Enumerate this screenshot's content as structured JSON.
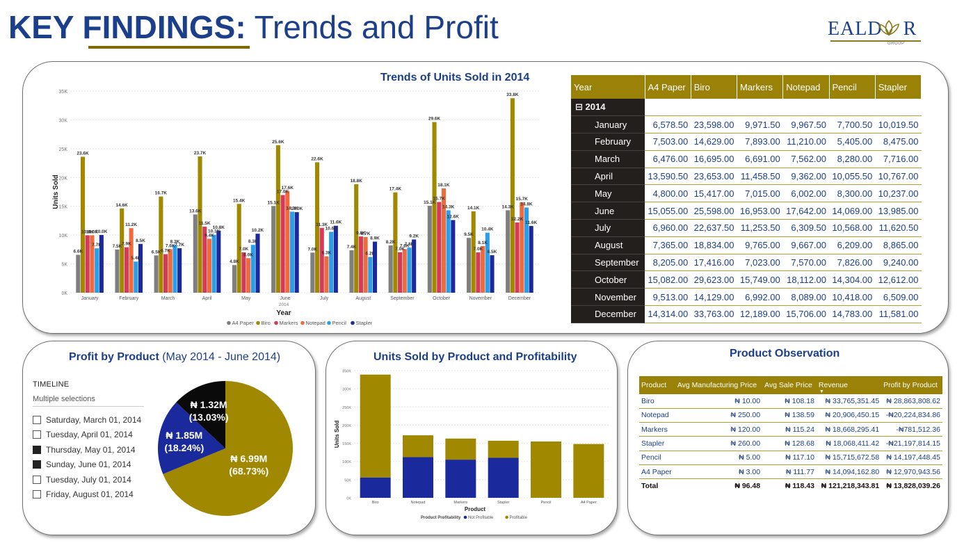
{
  "header": {
    "title_bold": "KEY FINDINGS",
    "title_colon": ":",
    "title_rest": " Trends and Profit",
    "logo_left": "EALD",
    "logo_right": "R",
    "logo_sub": "GROUP"
  },
  "trends": {
    "title": "Trends of Units Sold in 2014"
  },
  "pivot": {
    "headers": [
      "Year",
      "A4 Paper",
      "Biro",
      "Markers",
      "Notepad",
      "Pencil",
      "Stapler"
    ],
    "year_label": "⊟  2014",
    "rows": [
      {
        "month": "January",
        "values": [
          "6,578.50",
          "23,598.00",
          "9,971.50",
          "9,967.50",
          "7,700.50",
          "10,019.50"
        ]
      },
      {
        "month": "February",
        "values": [
          "7,503.00",
          "14,629.00",
          "7,893.00",
          "11,210.00",
          "5,405.00",
          "8,475.00"
        ]
      },
      {
        "month": "March",
        "values": [
          "6,476.00",
          "16,695.00",
          "6,691.00",
          "7,562.00",
          "8,280.00",
          "7,716.00"
        ]
      },
      {
        "month": "April",
        "values": [
          "13,590.50",
          "23,653.00",
          "11,458.50",
          "9,362.00",
          "10,055.50",
          "10,767.00"
        ]
      },
      {
        "month": "May",
        "values": [
          "4,800.00",
          "15,417.00",
          "7,015.00",
          "6,002.00",
          "8,300.00",
          "10,237.00"
        ]
      },
      {
        "month": "June",
        "values": [
          "15,055.00",
          "25,598.00",
          "16,953.00",
          "17,642.00",
          "14,069.00",
          "13,985.00"
        ]
      },
      {
        "month": "July",
        "values": [
          "6,960.00",
          "22,637.50",
          "11,253.50",
          "6,309.50",
          "10,568.00",
          "11,620.50"
        ]
      },
      {
        "month": "August",
        "values": [
          "7,365.00",
          "18,834.00",
          "9,765.00",
          "9,667.00",
          "6,209.00",
          "8,865.00"
        ]
      },
      {
        "month": "September",
        "values": [
          "8,205.00",
          "17,416.00",
          "7,023.00",
          "7,570.00",
          "7,826.00",
          "9,240.00"
        ]
      },
      {
        "month": "October",
        "values": [
          "15,082.00",
          "29,623.00",
          "15,749.00",
          "18,112.00",
          "14,304.00",
          "12,612.00"
        ]
      },
      {
        "month": "November",
        "values": [
          "9,513.00",
          "14,129.00",
          "6,992.00",
          "8,089.00",
          "10,418.00",
          "6,509.00"
        ]
      },
      {
        "month": "December",
        "values": [
          "14,314.00",
          "33,763.00",
          "12,189.00",
          "15,706.00",
          "14,783.00",
          "11,581.00"
        ]
      }
    ]
  },
  "profit": {
    "title_bold": "Profit by Product",
    "title_rest": " (May 2014 - June 2014)",
    "slicer_header": "TIMELINE",
    "slicer_mode": "Multiple selections",
    "slicer_options": [
      {
        "label": "Saturday, March 01, 2014",
        "checked": false
      },
      {
        "label": "Tuesday, April 01, 2014",
        "checked": false
      },
      {
        "label": "Thursday, May 01, 2014",
        "checked": true
      },
      {
        "label": "Sunday, June 01, 2014",
        "checked": true
      },
      {
        "label": "Tuesday, July 01, 2014",
        "checked": false
      },
      {
        "label": "Friday, August 01, 2014",
        "checked": false
      }
    ]
  },
  "units": {
    "title": "Units Sold by Product and Profitability"
  },
  "observation": {
    "title": "Product Observation",
    "headers": [
      "Product",
      "Avg Manufacturing Price",
      "Avg Sale Price",
      "Revenue",
      "Profit by Product"
    ],
    "rows": [
      [
        "Biro",
        "₦ 10.00",
        "₦ 108.18",
        "₦ 33,765,351.45",
        "₦ 28,863,808.62"
      ],
      [
        "Notepad",
        "₦ 250.00",
        "₦ 138.59",
        "₦ 20,906,450.15",
        "-₦20,224,834.86"
      ],
      [
        "Markers",
        "₦ 120.00",
        "₦ 115.24",
        "₦ 18,668,295.41",
        "-₦781,512.36"
      ],
      [
        "Stapler",
        "₦ 260.00",
        "₦ 128.68",
        "₦ 18,068,411.42",
        "-₦21,197,814.15"
      ],
      [
        "Pencil",
        "₦ 5.00",
        "₦ 117.10",
        "₦ 15,715,672.58",
        "₦ 14,197,448.45"
      ],
      [
        "A4 Paper",
        "₦ 3.00",
        "₦ 111.77",
        "₦ 14,094,162.80",
        "₦ 12,970,943.56"
      ]
    ],
    "total": [
      "Total",
      "₦ 96.48",
      "₦ 118.43",
      "₦ 121,218,343.81",
      "₦ 13,828,039.26"
    ]
  },
  "chart_data": [
    {
      "type": "bar",
      "title": "Trends of Units Sold in 2014",
      "xlabel": "Year",
      "x_sublabel": "2014",
      "ylabel": "Units Sold",
      "ylim": [
        0,
        35000
      ],
      "yticks": [
        "0K",
        "5K",
        "10K",
        "15K",
        "20K",
        "25K",
        "30K",
        "35K"
      ],
      "categories": [
        "January",
        "February",
        "March",
        "April",
        "May",
        "June",
        "July",
        "August",
        "September",
        "October",
        "November",
        "December"
      ],
      "legend": "bottom",
      "series": [
        {
          "name": "A4 Paper",
          "color": "#7f7f7f",
          "values": [
            6578.5,
            7503,
            6476,
            13590.5,
            4800,
            15055,
            6960,
            7365,
            8205,
            15082,
            9513,
            14314
          ],
          "labels": [
            "6.6K",
            "7.5K",
            "6.5K",
            "13.6K",
            "4.8K",
            "15.1K",
            "7.0K",
            "7.4K",
            "8.2K",
            "15.1K",
            "9.5K",
            "14.3K"
          ]
        },
        {
          "name": "Biro",
          "color": "#a08800",
          "values": [
            23598,
            14629,
            16695,
            23653,
            15417,
            25598,
            22637.5,
            18834,
            17416,
            29623,
            14129,
            33763
          ],
          "labels": [
            "23.6K",
            "14.6K",
            "16.7K",
            "23.7K",
            "15.4K",
            "25.6K",
            "22.6K",
            "18.8K",
            "17.4K",
            "29.6K",
            "14.1K",
            "33.8K"
          ]
        },
        {
          "name": "Markers",
          "color": "#d43a5a",
          "values": [
            9971.5,
            7893,
            6691,
            11458.5,
            7015,
            16953,
            11253.5,
            9765,
            7023,
            15749,
            6992,
            12189
          ],
          "labels": [
            "10.0K",
            "7.9K",
            "6.7K",
            "11.5K",
            "7.0K",
            "17.0K",
            "11.3K",
            "9.8K",
            "7.0K",
            "15.7K",
            "7.0K",
            "12.2K"
          ]
        },
        {
          "name": "Notepad",
          "color": "#ef6a3c",
          "values": [
            9967.5,
            11210,
            7562,
            9362,
            6002,
            17642,
            6309.5,
            9667,
            7570,
            18112,
            8089,
            15706
          ],
          "labels": [
            "10.0K",
            "11.2K",
            "7.6K",
            "9.4K",
            "6.0K",
            "17.6K",
            "6.3K",
            "9.7K",
            "7.6K",
            "18.1K",
            "8.1K",
            "15.7K"
          ]
        },
        {
          "name": "Pencil",
          "color": "#2a9ee8",
          "values": [
            7700.5,
            5405,
            8280,
            10055.5,
            8300,
            14069,
            10568,
            6209,
            7826,
            14304,
            10418,
            14783
          ],
          "labels": [
            "7.7K",
            "5.4K",
            "8.3K",
            "10.1K",
            "8.3K",
            "14.1K",
            "10.6K",
            "6.2K",
            "7.8K",
            "14.3K",
            "10.4K",
            "14.8K"
          ]
        },
        {
          "name": "Stapler",
          "color": "#1a2a9c",
          "values": [
            10019.5,
            8475,
            7716,
            10767,
            10237,
            13985,
            11620.5,
            8865,
            9240,
            12612,
            6509,
            11581
          ],
          "labels": [
            "10.0K",
            "8.5K",
            "7.7K",
            "10.8K",
            "10.2K",
            "14.0K",
            "11.6K",
            "8.9K",
            "9.2K",
            "12.6K",
            "6.5K",
            "11.6K"
          ]
        }
      ]
    },
    {
      "type": "pie",
      "title": "Profit by Product (May 2014 - June 2014)",
      "slices": [
        {
          "value": 6.99,
          "label": "₦ 6.99M",
          "percent": "(68.73%)",
          "color": "#a08800"
        },
        {
          "value": 1.85,
          "label": "₦ 1.85M",
          "percent": "(18.24%)",
          "color": "#1a2a9c"
        },
        {
          "value": 1.32,
          "label": "₦ 1.32M",
          "percent": "(13.03%)",
          "color": "#0a0a0a"
        }
      ]
    },
    {
      "type": "bar",
      "stacked": true,
      "title": "Units Sold by Product and Profitability",
      "xlabel": "Product",
      "ylabel": "Units Sold",
      "ylim": [
        0,
        350000
      ],
      "yticks": [
        "0K",
        "50K",
        "100K",
        "150K",
        "200K",
        "250K",
        "300K",
        "350K"
      ],
      "categories": [
        "Biro",
        "Notepad",
        "Markers",
        "Stapler",
        "Pencil",
        "A4 Paper"
      ],
      "legend_title": "Product Profitability",
      "series": [
        {
          "name": "Not Profitable",
          "color": "#1a2a9c",
          "values": [
            56000,
            112000,
            105000,
            110000,
            0,
            0
          ]
        },
        {
          "name": "Profitable",
          "color": "#a08800",
          "values": [
            283000,
            60000,
            58000,
            47000,
            155000,
            148000
          ]
        }
      ]
    }
  ]
}
